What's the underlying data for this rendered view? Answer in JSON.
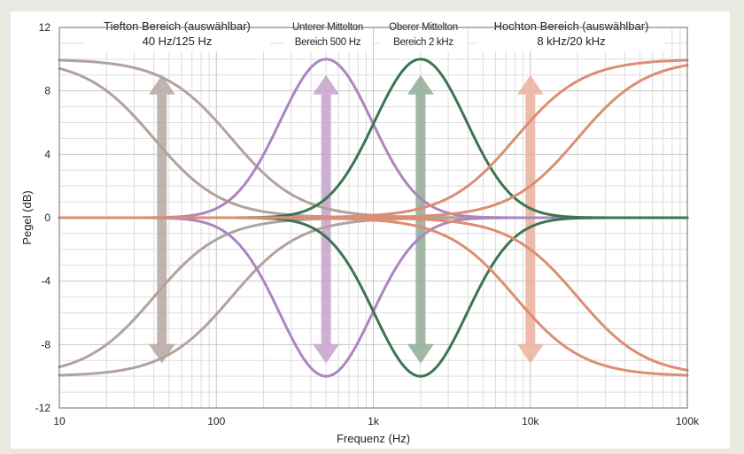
{
  "chart_data": {
    "type": "line",
    "title": "",
    "xlabel": "Frequenz (Hz)",
    "ylabel": "Pegel (dB)",
    "x_scale": "log",
    "xlim": [
      10,
      100000
    ],
    "ylim": [
      -12,
      12
    ],
    "x_ticks": [
      {
        "value": 10,
        "label": "10"
      },
      {
        "value": 100,
        "label": "100"
      },
      {
        "value": 1000,
        "label": "1k"
      },
      {
        "value": 10000,
        "label": "10k"
      },
      {
        "value": 100000,
        "label": "100k"
      }
    ],
    "y_ticks": [
      {
        "value": 12,
        "label": "12"
      },
      {
        "value": 8,
        "label": "8"
      },
      {
        "value": 4,
        "label": "4"
      },
      {
        "value": 0,
        "label": "0"
      },
      {
        "value": -4,
        "label": "-4"
      },
      {
        "value": -8,
        "label": "-8"
      },
      {
        "value": -12,
        "label": "-12"
      }
    ],
    "grid": true,
    "regions": [
      {
        "line1": "Tiefton Bereich (auswählbar)",
        "line2": "40 Hz/125 Hz",
        "x": 45,
        "color": "#b5a7a2"
      },
      {
        "line1": "Unterer Mittelton",
        "line2": "Bereich 500 Hz",
        "x": 500,
        "color": "#c5a2cb"
      },
      {
        "line1": "Oberer Mittelton",
        "line2": "Bereich 2 kHz",
        "x": 2000,
        "color": "#8fac94"
      },
      {
        "line1": "Hochton Bereich (auswählbar)",
        "line2": "8 kHz/20 kHz",
        "x": 10000,
        "color": "#ebb09b"
      }
    ],
    "series": [
      {
        "kind": "lowshelf",
        "corner_hz": 40,
        "gain_db": 10,
        "color": "#b1a29d"
      },
      {
        "kind": "lowshelf",
        "corner_hz": 40,
        "gain_db": -10,
        "color": "#b1a29d"
      },
      {
        "kind": "lowshelf",
        "corner_hz": 125,
        "gain_db": 10,
        "color": "#b1a29d"
      },
      {
        "kind": "lowshelf",
        "corner_hz": 125,
        "gain_db": -10,
        "color": "#b1a29d"
      },
      {
        "kind": "peak",
        "center_hz": 500,
        "gain_db": 10,
        "color": "#ad85be"
      },
      {
        "kind": "peak",
        "center_hz": 500,
        "gain_db": -10,
        "color": "#ad85be"
      },
      {
        "kind": "peak",
        "center_hz": 2000,
        "gain_db": 10,
        "color": "#3d7451"
      },
      {
        "kind": "peak",
        "center_hz": 2000,
        "gain_db": -10,
        "color": "#3d7451"
      },
      {
        "kind": "highshelf",
        "corner_hz": 8000,
        "gain_db": 10,
        "color": "#db8e74"
      },
      {
        "kind": "highshelf",
        "corner_hz": 8000,
        "gain_db": -10,
        "color": "#db8e74"
      },
      {
        "kind": "highshelf",
        "corner_hz": 20000,
        "gain_db": 10,
        "color": "#db8e74"
      },
      {
        "kind": "highshelf",
        "corner_hz": 20000,
        "gain_db": -10,
        "color": "#db8e74"
      }
    ]
  }
}
